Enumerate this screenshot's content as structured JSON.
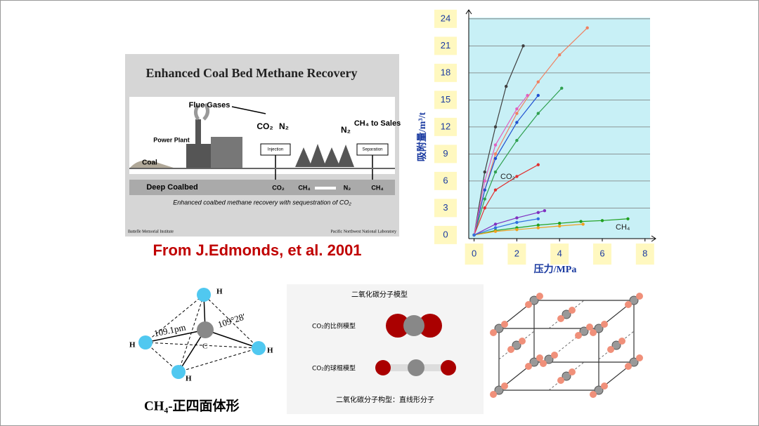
{
  "ecbm_figure": {
    "title": "Enhanced Coal Bed Methane Recovery",
    "flue_gases": "Flue Gases",
    "power_plant": "Power Plant",
    "coal": "Coal",
    "co2": "CO₂",
    "n2_left": "N₂",
    "n2_right": "N₂",
    "ch4_to_sales": "CH₄ to Sales",
    "injection": "Injection",
    "separation": "Separation",
    "deep_coalbed": "Deep Coalbed",
    "flow_co2": "CO₂",
    "flow_ch4": "CH₄",
    "flow_n2": "N₂",
    "flow_ch4_out": "CH₄",
    "caption": "Enhanced coalbed methane recovery with sequestration of CO₂",
    "credit_left": "Battelle Memorial Institute",
    "credit_right": "Pacific Northwest National Laboratory"
  },
  "source": "From J.Edmonds, et al. 2001",
  "ch4_model": {
    "atom_labels": [
      "H",
      "H",
      "H",
      "H",
      "C"
    ],
    "bond_length": "109.1pm",
    "bond_angle": "109°28′",
    "caption": "CH₄-正四面体形"
  },
  "co2_model": {
    "title": "二氧化碳分子模型",
    "space_filling": "CO₂的比例模型",
    "ball_stick": "CO₂的球棍模型",
    "caption": "二氧化碳分子构型：直线形分子"
  },
  "chart_data": {
    "type": "line",
    "x_label": "压力/MPa",
    "y_label": "吸附量/m³/t",
    "xlim": [
      -0.25,
      8.5
    ],
    "ylim": [
      -0.4,
      25
    ],
    "xticks": [
      0,
      2,
      4,
      6,
      8
    ],
    "yticks": [
      0,
      3,
      6,
      9,
      12,
      15,
      18,
      21,
      24
    ],
    "grid": true,
    "annotations": [
      "CO₂",
      "CH₄"
    ],
    "series": [
      {
        "color": "#f08060",
        "x": [
          0,
          0.5,
          1,
          2,
          3,
          4,
          5.3
        ],
        "values": [
          0,
          5,
          9,
          13.5,
          17,
          20,
          23
        ]
      },
      {
        "color": "#404040",
        "x": [
          0,
          0.5,
          1,
          1.5,
          2.3
        ],
        "values": [
          0,
          7,
          12,
          16.5,
          21
        ]
      },
      {
        "color": "#30a050",
        "x": [
          0,
          0.5,
          1,
          2,
          3,
          4.1
        ],
        "values": [
          0,
          4,
          7,
          10.5,
          13.5,
          16.3
        ]
      },
      {
        "color": "#2050d0",
        "x": [
          0,
          0.5,
          1,
          2,
          3
        ],
        "values": [
          0,
          5,
          8.5,
          12.5,
          15.5
        ]
      },
      {
        "color": "#e03030",
        "x": [
          0,
          0.5,
          1,
          2,
          3
        ],
        "values": [
          0,
          3,
          5,
          6.5,
          7.8
        ]
      },
      {
        "color": "#e060c0",
        "x": [
          0,
          0.5,
          1,
          2,
          2.5
        ],
        "values": [
          0,
          6,
          10,
          14,
          15.5
        ]
      },
      {
        "color": "#20a020",
        "x": [
          0,
          1,
          2,
          3,
          4,
          5,
          6,
          7.2
        ],
        "values": [
          0,
          0.5,
          0.8,
          1.1,
          1.3,
          1.5,
          1.6,
          1.8
        ]
      },
      {
        "color": "#8030c0",
        "x": [
          0,
          1,
          2,
          3,
          3.3
        ],
        "values": [
          0,
          1.2,
          1.9,
          2.5,
          2.7
        ]
      },
      {
        "color": "#f0a020",
        "x": [
          0,
          1,
          2,
          3,
          4,
          5.1
        ],
        "values": [
          0,
          0.4,
          0.6,
          0.8,
          1,
          1.2
        ]
      },
      {
        "color": "#3070e0",
        "x": [
          0,
          1,
          2,
          3
        ],
        "values": [
          0,
          0.8,
          1.4,
          1.8
        ]
      }
    ]
  }
}
